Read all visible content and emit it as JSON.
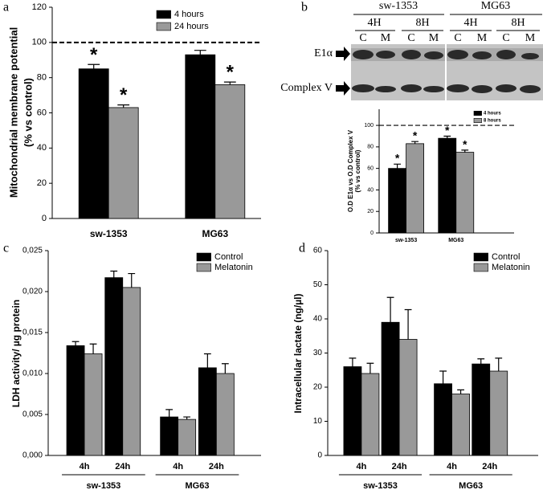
{
  "blot": {
    "cell_lines": [
      "sw-1353",
      "MG63"
    ],
    "times": [
      "4H",
      "8H",
      "4H",
      "8H"
    ],
    "lanes": [
      "C",
      "M",
      "C",
      "M",
      "C",
      "M",
      "C",
      "M"
    ],
    "bands": [
      "E1α",
      "Complex V"
    ]
  },
  "chart_data": [
    {
      "type": "bar",
      "panel_label": "a",
      "y_label": [
        "Mitochondrial membrane potential",
        "(% vs control)"
      ],
      "categories": [
        "sw-1353",
        "MG63"
      ],
      "series": [
        {
          "name": "4 hours",
          "color": "#000000",
          "values": [
            85,
            93
          ],
          "errors": [
            2.5,
            2.5
          ],
          "markers": [
            "*",
            null
          ]
        },
        {
          "name": "24 hours",
          "color": "#999999",
          "values": [
            63,
            76
          ],
          "errors": [
            1.5,
            1.5
          ],
          "markers": [
            "*",
            "*"
          ]
        }
      ],
      "ylim": [
        0,
        120
      ],
      "yticks": [
        0,
        20,
        40,
        60,
        80,
        100,
        120
      ],
      "reference_line": 100,
      "legend": "upper right"
    },
    {
      "type": "bar",
      "panel_label": "b",
      "y_label": [
        "O.D E1α vs O.D Complex V",
        "(% vs control)"
      ],
      "categories": [
        "sw-1353",
        "MG63"
      ],
      "series": [
        {
          "name": "4 hours",
          "color": "#000000",
          "values": [
            60,
            88
          ],
          "errors": [
            4,
            2
          ],
          "markers": [
            "*",
            "*"
          ]
        },
        {
          "name": "8 hours",
          "color": "#999999",
          "values": [
            83,
            75
          ],
          "errors": [
            2,
            2
          ],
          "markers": [
            "*",
            "*"
          ]
        }
      ],
      "ylim": [
        0,
        115
      ],
      "yticks": [
        0,
        20,
        40,
        60,
        80,
        100
      ],
      "reference_line": 100,
      "legend": "upper right"
    },
    {
      "type": "bar",
      "panel_label": "c",
      "y_label": [
        "LDH activity/ µg protein"
      ],
      "categories": [
        "4h",
        "24h",
        "4h",
        "24h"
      ],
      "groups": [
        "sw-1353",
        "MG63"
      ],
      "series": [
        {
          "name": "Control",
          "color": "#000000",
          "values": [
            0.0134,
            0.0217,
            0.0047,
            0.0107
          ],
          "errors": [
            0.0005,
            0.0008,
            0.0009,
            0.0017
          ]
        },
        {
          "name": "Melatonin",
          "color": "#999999",
          "values": [
            0.0124,
            0.0205,
            0.0044,
            0.01
          ],
          "errors": [
            0.0012,
            0.0017,
            0.0003,
            0.0012
          ]
        }
      ],
      "ylim": [
        0,
        0.025
      ],
      "yticks": [
        {
          "value": 0,
          "label": "0,000"
        },
        {
          "value": 0.005,
          "label": "0,005"
        },
        {
          "value": 0.01,
          "label": "0,010"
        },
        {
          "value": 0.015,
          "label": "0,015"
        },
        {
          "value": 0.02,
          "label": "0,020"
        },
        {
          "value": 0.025,
          "label": "0,025"
        }
      ],
      "legend": "upper right"
    },
    {
      "type": "bar",
      "panel_label": "d",
      "y_label": [
        "Intracellular lactate (ng/µl)"
      ],
      "categories": [
        "4h",
        "24h",
        "4h",
        "24h"
      ],
      "groups": [
        "sw-1353",
        "MG63"
      ],
      "series": [
        {
          "name": "Control",
          "color": "#000000",
          "values": [
            26,
            39,
            21,
            26.8
          ],
          "errors": [
            2.5,
            7.3,
            3.7,
            1.5
          ]
        },
        {
          "name": "Melatonin",
          "color": "#999999",
          "values": [
            24,
            34,
            18,
            24.7
          ],
          "errors": [
            3,
            8.7,
            1.2,
            3.8
          ]
        }
      ],
      "ylim": [
        0,
        60
      ],
      "yticks": [
        0,
        10,
        20,
        30,
        40,
        50,
        60
      ],
      "legend": "upper right"
    }
  ]
}
